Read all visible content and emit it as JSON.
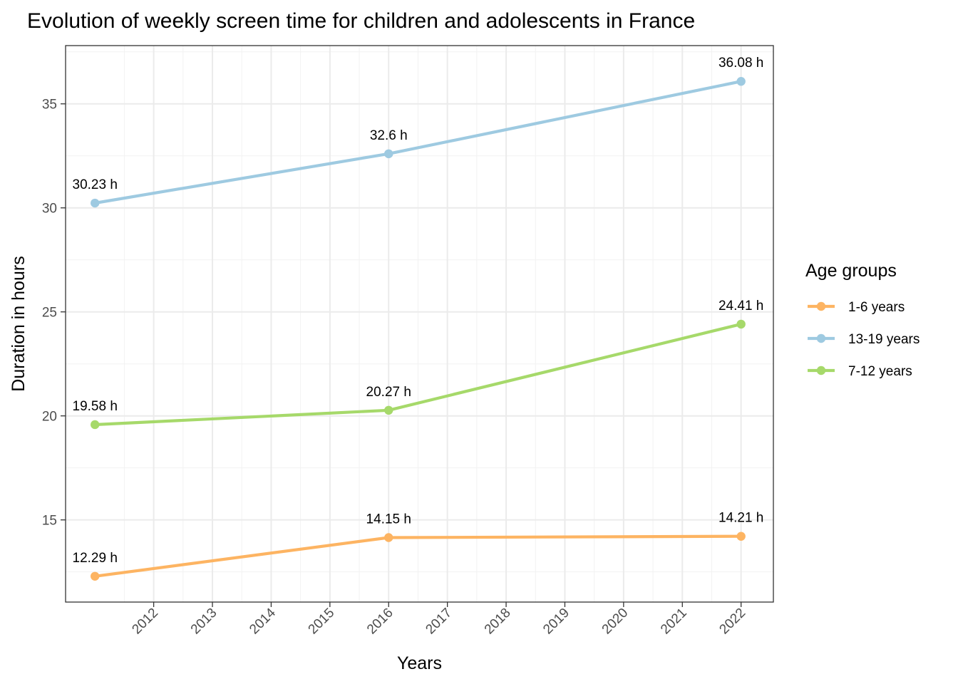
{
  "chart_data": {
    "type": "line",
    "title": "Evolution of weekly screen time for children and adolescents in France",
    "xlabel": "Years",
    "ylabel": "Duration in hours",
    "x_ticks": [
      "2012",
      "2013",
      "2014",
      "2015",
      "2016",
      "2017",
      "2018",
      "2019",
      "2020",
      "2021",
      "2022"
    ],
    "y_ticks": [
      "15",
      "20",
      "25",
      "30",
      "35"
    ],
    "xlim": [
      2010.5,
      2022.55
    ],
    "ylim": [
      11.05,
      37.8
    ],
    "grid": true,
    "legend": {
      "title": "Age groups",
      "placement": "right"
    },
    "series": [
      {
        "name": "1-6 years",
        "color": "#FDB462",
        "x": [
          2011,
          2016,
          2022
        ],
        "y": [
          12.29,
          14.15,
          14.21
        ],
        "labels": [
          "12.29 h",
          "14.15 h",
          "14.21 h"
        ]
      },
      {
        "name": "13-19 years",
        "color": "#9ECAE1",
        "x": [
          2011,
          2016,
          2022
        ],
        "y": [
          30.23,
          32.6,
          36.08
        ],
        "labels": [
          "30.23 h",
          "32.6 h",
          "36.08 h"
        ]
      },
      {
        "name": "7-12 years",
        "color": "#A6D96A",
        "x": [
          2011,
          2016,
          2022
        ],
        "y": [
          19.58,
          20.27,
          24.41
        ],
        "labels": [
          "19.58 h",
          "20.27 h",
          "24.41 h"
        ]
      }
    ]
  }
}
